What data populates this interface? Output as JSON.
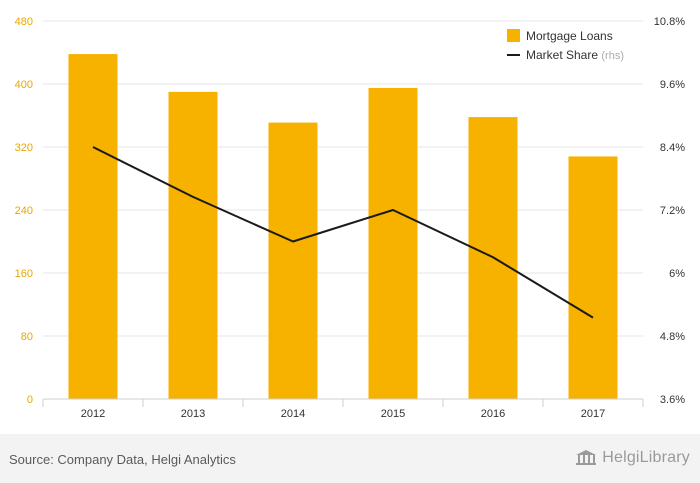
{
  "chart_data": {
    "type": "bar",
    "categories": [
      "2012",
      "2013",
      "2014",
      "2015",
      "2016",
      "2017"
    ],
    "series": [
      {
        "name": "Mortgage Loans",
        "type": "bar",
        "axis": "left",
        "values": [
          438,
          390,
          351,
          395,
          358,
          308
        ]
      },
      {
        "name": "Market Share",
        "axis_note": "(rhs)",
        "type": "line",
        "axis": "right",
        "values": [
          8.4,
          7.45,
          6.6,
          7.2,
          6.3,
          5.15
        ]
      }
    ],
    "y_left": {
      "ticks": [
        "0",
        "80",
        "160",
        "240",
        "320",
        "400",
        "480"
      ],
      "lim": [
        0,
        480
      ]
    },
    "y_right": {
      "ticks": [
        "3.6%",
        "4.8%",
        "6%",
        "7.2%",
        "8.4%",
        "9.6%",
        "10.8%"
      ],
      "lim": [
        3.6,
        10.8
      ]
    },
    "legend_position": "top-right",
    "grid": true,
    "colors": {
      "bar": "#f7b200",
      "line": "#1a1a1a",
      "left_tick": "#e8a800",
      "right_tick": "#333333"
    }
  },
  "footer": {
    "source": "Source: Company Data, Helgi Analytics",
    "logo_text": "HelgiLibrary"
  }
}
